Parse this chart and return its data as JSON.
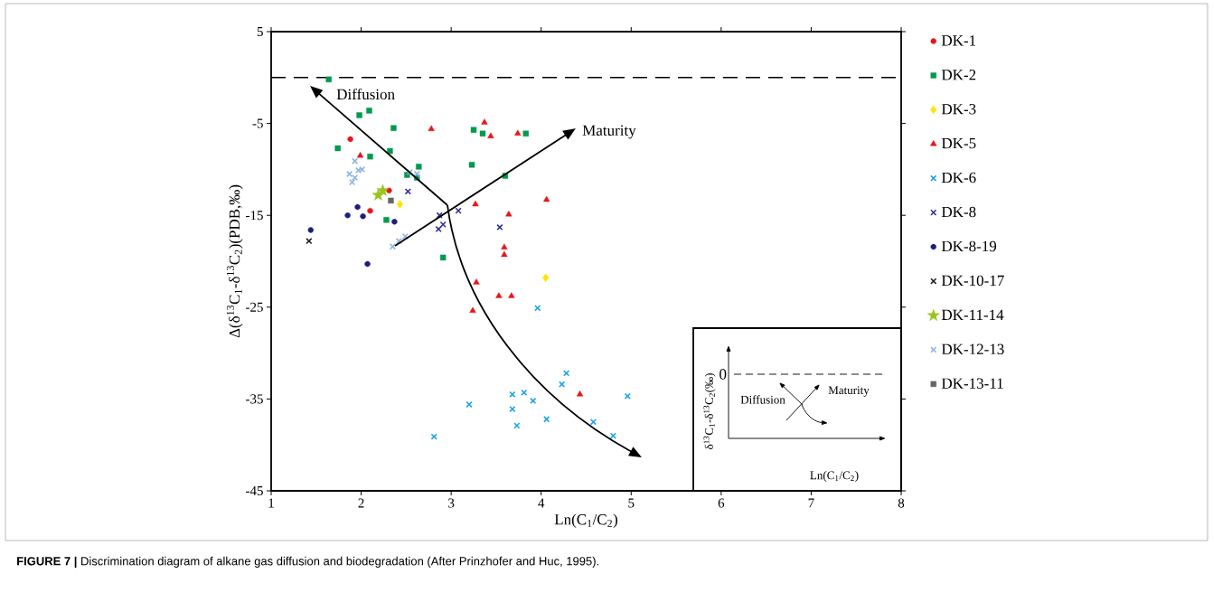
{
  "chart_data": {
    "type": "scatter",
    "xlabel": "Ln(C$_{1}$/C$_{2}$)",
    "ylabel": "Δ(δ$^{13}$C$_{1}$-δ$^{13}$C$_{2}$)(PDB,‰)",
    "xlim": [
      1,
      8
    ],
    "ylim": [
      -45,
      5
    ],
    "xticks": [
      1,
      2,
      3,
      4,
      5,
      6,
      7,
      8
    ],
    "yticks": [
      5,
      -5,
      -15,
      -25,
      -35,
      -45
    ],
    "legend": "right",
    "ref_lines": [
      {
        "axis": "y",
        "value": 0,
        "color": "#000000",
        "line_style": "dashed"
      }
    ],
    "annotations": [
      "Diffusion",
      "Maturity",
      "0",
      "Diffusion",
      "Maturity",
      "δ$^{13}$C$_{1}$-δ$^{13}$C$_{2}$(‰)",
      "Ln(C$_{1}$/C$_{2}$)",
      "**FIGURE 7 |** Discrimination diagram of alkane gas diffusion and biodegradation (After Prinzhofer and Huc, 1995)."
    ],
    "series": [
      {
        "name": "DK-1",
        "color": "#e8141c",
        "marker": "circle",
        "x": [
          1.88,
          2.31,
          2.1
        ],
        "values": [
          -6.7,
          -12.3,
          -14.5
        ]
      },
      {
        "name": "DK-2",
        "color": "#009a4e",
        "marker": "square",
        "x": [
          1.64,
          1.98,
          2.09,
          2.36,
          1.74,
          2.1,
          2.32,
          2.64,
          2.51,
          2.62,
          3.25,
          3.35,
          3.83,
          3.23,
          3.6,
          2.28,
          2.91
        ],
        "values": [
          -0.2,
          -4.1,
          -3.6,
          -5.5,
          -7.7,
          -8.6,
          -8.0,
          -9.7,
          -10.6,
          -10.9,
          -5.7,
          -6.1,
          -6.1,
          -9.5,
          -10.7,
          -15.5,
          -19.6
        ]
      },
      {
        "name": "DK-3",
        "color": "#ffe500",
        "marker": "diamond",
        "x": [
          2.43,
          4.05
        ],
        "values": [
          -13.8,
          -21.8
        ]
      },
      {
        "name": "DK-5",
        "color": "#e8141c",
        "marker": "triangle",
        "x": [
          2.78,
          3.37,
          3.44,
          3.74,
          1.99,
          3.27,
          4.06,
          3.64,
          3.59,
          3.59,
          3.28,
          3.53,
          3.67,
          3.24,
          4.43
        ],
        "values": [
          -5.6,
          -4.9,
          -6.4,
          -6.1,
          -8.5,
          -13.8,
          -13.3,
          -14.9,
          -18.5,
          -19.3,
          -22.3,
          -23.8,
          -23.8,
          -25.4,
          -34.5
        ]
      },
      {
        "name": "DK-6",
        "color": "#1aa3e8",
        "marker": "cross",
        "x": [
          3.96,
          4.28,
          4.23,
          3.68,
          3.81,
          3.91,
          4.96,
          3.2,
          3.68,
          3.73,
          4.06,
          4.58,
          4.8,
          2.81
        ],
        "values": [
          -25.1,
          -32.2,
          -33.4,
          -34.5,
          -34.3,
          -35.2,
          -34.7,
          -35.6,
          -36.1,
          -37.9,
          -37.2,
          -37.5,
          -39.0,
          -39.1
        ]
      },
      {
        "name": "DK-8",
        "color": "#2e3192",
        "marker": "cross",
        "x": [
          2.52,
          3.08,
          2.87,
          2.91,
          2.86,
          3.54
        ],
        "values": [
          -12.4,
          -14.5,
          -15.0,
          -16.0,
          -16.5,
          -16.3
        ]
      },
      {
        "name": "DK-8-19",
        "color": "#1b1f7a",
        "marker": "circle",
        "x": [
          1.96,
          1.85,
          2.02,
          2.37,
          1.44,
          2.07
        ],
        "values": [
          -14.1,
          -15.0,
          -15.1,
          -15.7,
          -16.6,
          -20.3
        ]
      },
      {
        "name": "DK-10-17",
        "color": "#231f20",
        "marker": "cross",
        "x": [
          1.42
        ],
        "values": [
          -17.8
        ]
      },
      {
        "name": "DK-11-14",
        "color": "#9ac31c",
        "marker": "star",
        "x": [
          2.24,
          2.19
        ],
        "values": [
          -12.3,
          -12.8
        ]
      },
      {
        "name": "DK-12-13",
        "color": "#8fb4e3",
        "marker": "cross",
        "x": [
          1.93,
          1.97,
          2.01,
          1.87,
          1.93,
          1.9,
          2.54,
          2.62,
          2.35,
          2.42,
          2.49
        ],
        "values": [
          -9.1,
          -10.1,
          -10.0,
          -10.5,
          -10.9,
          -11.4,
          -10.3,
          -10.5,
          -18.4,
          -17.8,
          -17.3
        ]
      },
      {
        "name": "DK-13-11",
        "color": "#666666",
        "marker": "square",
        "x": [
          2.33
        ],
        "values": [
          -13.4
        ]
      }
    ]
  }
}
